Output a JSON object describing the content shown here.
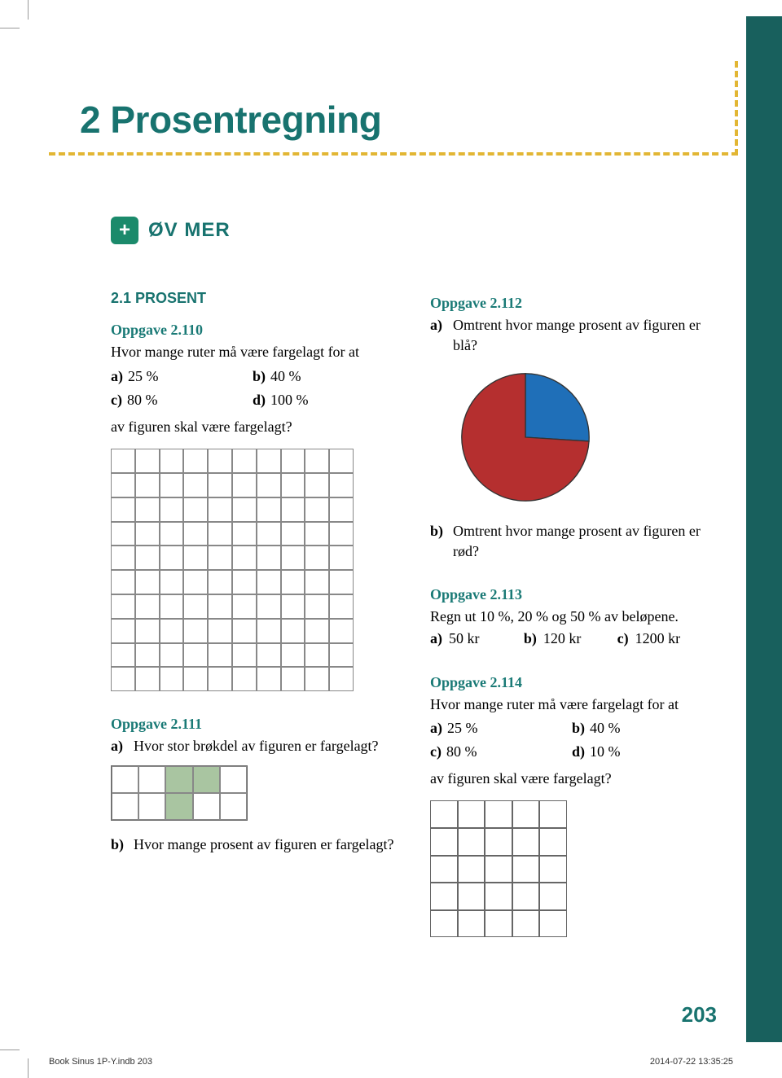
{
  "chapter_title": "2 Prosentregning",
  "ov_mer": {
    "plus": "+",
    "label": "ØV MER"
  },
  "section_21_title": "2.1 PROSENT",
  "opp_110": {
    "title": "Oppgave 2.110",
    "q": "Hvor mange ruter må være fargelagt for at",
    "a_lbl": "a)",
    "a_val": "25 %",
    "b_lbl": "b)",
    "b_val": "40 %",
    "c_lbl": "c)",
    "c_val": "80 %",
    "d_lbl": "d)",
    "d_val": "100 %",
    "tail": "av figuren skal være fargelagt?",
    "grid": {
      "rows": 10,
      "cols": 10
    }
  },
  "opp_111": {
    "title": "Oppgave 2.111",
    "a_lbl": "a)",
    "a_q": "Hvor stor brøkdel av figuren er fargelagt?",
    "b_lbl": "b)",
    "b_q": "Hvor mange prosent av figuren er fargelagt?",
    "grid": {
      "rows": 2,
      "cols": 5,
      "filled_cells": [
        2,
        3,
        7
      ],
      "fill_color": "#a9c5a1"
    }
  },
  "opp_112": {
    "title": "Oppgave 2.112",
    "a_lbl": "a)",
    "a_q": "Omtrent hvor mange prosent av figuren er blå?",
    "b_lbl": "b)",
    "b_q": "Omtrent hvor mange prosent av figuren er rød?",
    "pie": {
      "type": "pie",
      "slices": [
        {
          "label": "blue",
          "fraction": 0.26,
          "color": "#1f6fb8"
        },
        {
          "label": "red",
          "fraction": 0.74,
          "color": "#b52f2f"
        }
      ],
      "stroke": "#333",
      "background": "#ffffff"
    }
  },
  "opp_113": {
    "title": "Oppgave 2.113",
    "q": "Regn ut 10 %, 20 % og 50 % av beløpene.",
    "a_lbl": "a)",
    "a_val": "50 kr",
    "b_lbl": "b)",
    "b_val": "120 kr",
    "c_lbl": "c)",
    "c_val": "1200 kr"
  },
  "opp_114": {
    "title": "Oppgave 2.114",
    "q": "Hvor mange ruter må være fargelagt for at",
    "a_lbl": "a)",
    "a_val": "25 %",
    "b_lbl": "b)",
    "b_val": "40 %",
    "c_lbl": "c)",
    "c_val": "80 %",
    "d_lbl": "d)",
    "d_val": "10 %",
    "tail": "av figuren skal være fargelagt?",
    "grid": {
      "rows": 5,
      "cols": 5
    }
  },
  "page_number": "203",
  "footer": {
    "left": "Book Sinus 1P-Y.indb   203",
    "right": "2014-07-22   13:35:25"
  },
  "colors": {
    "teal": "#18736f",
    "teal_dark": "#18605d",
    "dash": "#e2b634",
    "green_badge": "#1b8a6b"
  }
}
